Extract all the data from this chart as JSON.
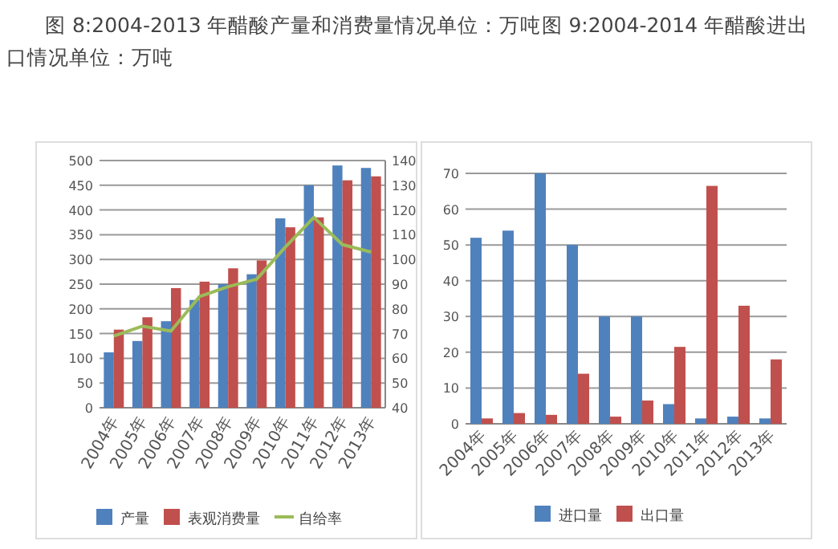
{
  "chart_data": [
    {
      "type": "bar",
      "title": "图 8:2004-2013 年醋酸产量和消费量情况单位：万吨",
      "categories": [
        "2004年",
        "2005年",
        "2006年",
        "2007年",
        "2008年",
        "2009年",
        "2010年",
        "2011年",
        "2012年",
        "2013年"
      ],
      "series": [
        {
          "name": "产量",
          "color": "#4f81bd",
          "values": [
            112,
            135,
            175,
            218,
            250,
            270,
            383,
            450,
            490,
            485
          ]
        },
        {
          "name": "表观消费量",
          "color": "#c0504d",
          "values": [
            158,
            183,
            242,
            255,
            282,
            298,
            365,
            385,
            460,
            468
          ]
        },
        {
          "name": "自给率",
          "type": "line",
          "axis": "y2",
          "color": "#9bbb59",
          "values": [
            69,
            73,
            71,
            85,
            89,
            92,
            105,
            117,
            106,
            103
          ]
        }
      ],
      "ylim": [
        0,
        500
      ],
      "yticks": [
        0,
        50,
        100,
        150,
        200,
        250,
        300,
        350,
        400,
        450,
        500
      ],
      "y2lim": [
        40,
        140
      ],
      "y2ticks": [
        40,
        50,
        60,
        70,
        80,
        90,
        100,
        110,
        120,
        130,
        140
      ],
      "grid": "y",
      "legend": "bottom",
      "marker": "none"
    },
    {
      "type": "bar",
      "title": "图 9:2004-2014 年醋酸进出口情况单位：万吨",
      "categories": [
        "2004年",
        "2005年",
        "2006年",
        "2007年",
        "2008年",
        "2009年",
        "2010年",
        "2011年",
        "2012年",
        "2013年"
      ],
      "series": [
        {
          "name": "进口量",
          "color": "#4f81bd",
          "values": [
            52,
            54,
            70,
            50,
            30,
            30,
            5.5,
            1.5,
            2,
            1.5
          ]
        },
        {
          "name": "出口量",
          "color": "#c0504d",
          "values": [
            1.5,
            3,
            2.5,
            14,
            2,
            6.5,
            21.5,
            66.5,
            33,
            18
          ]
        }
      ],
      "ylim": [
        0,
        70
      ],
      "yticks": [
        0,
        10,
        20,
        30,
        40,
        50,
        60,
        70
      ],
      "grid": "y",
      "legend": "bottom"
    }
  ]
}
